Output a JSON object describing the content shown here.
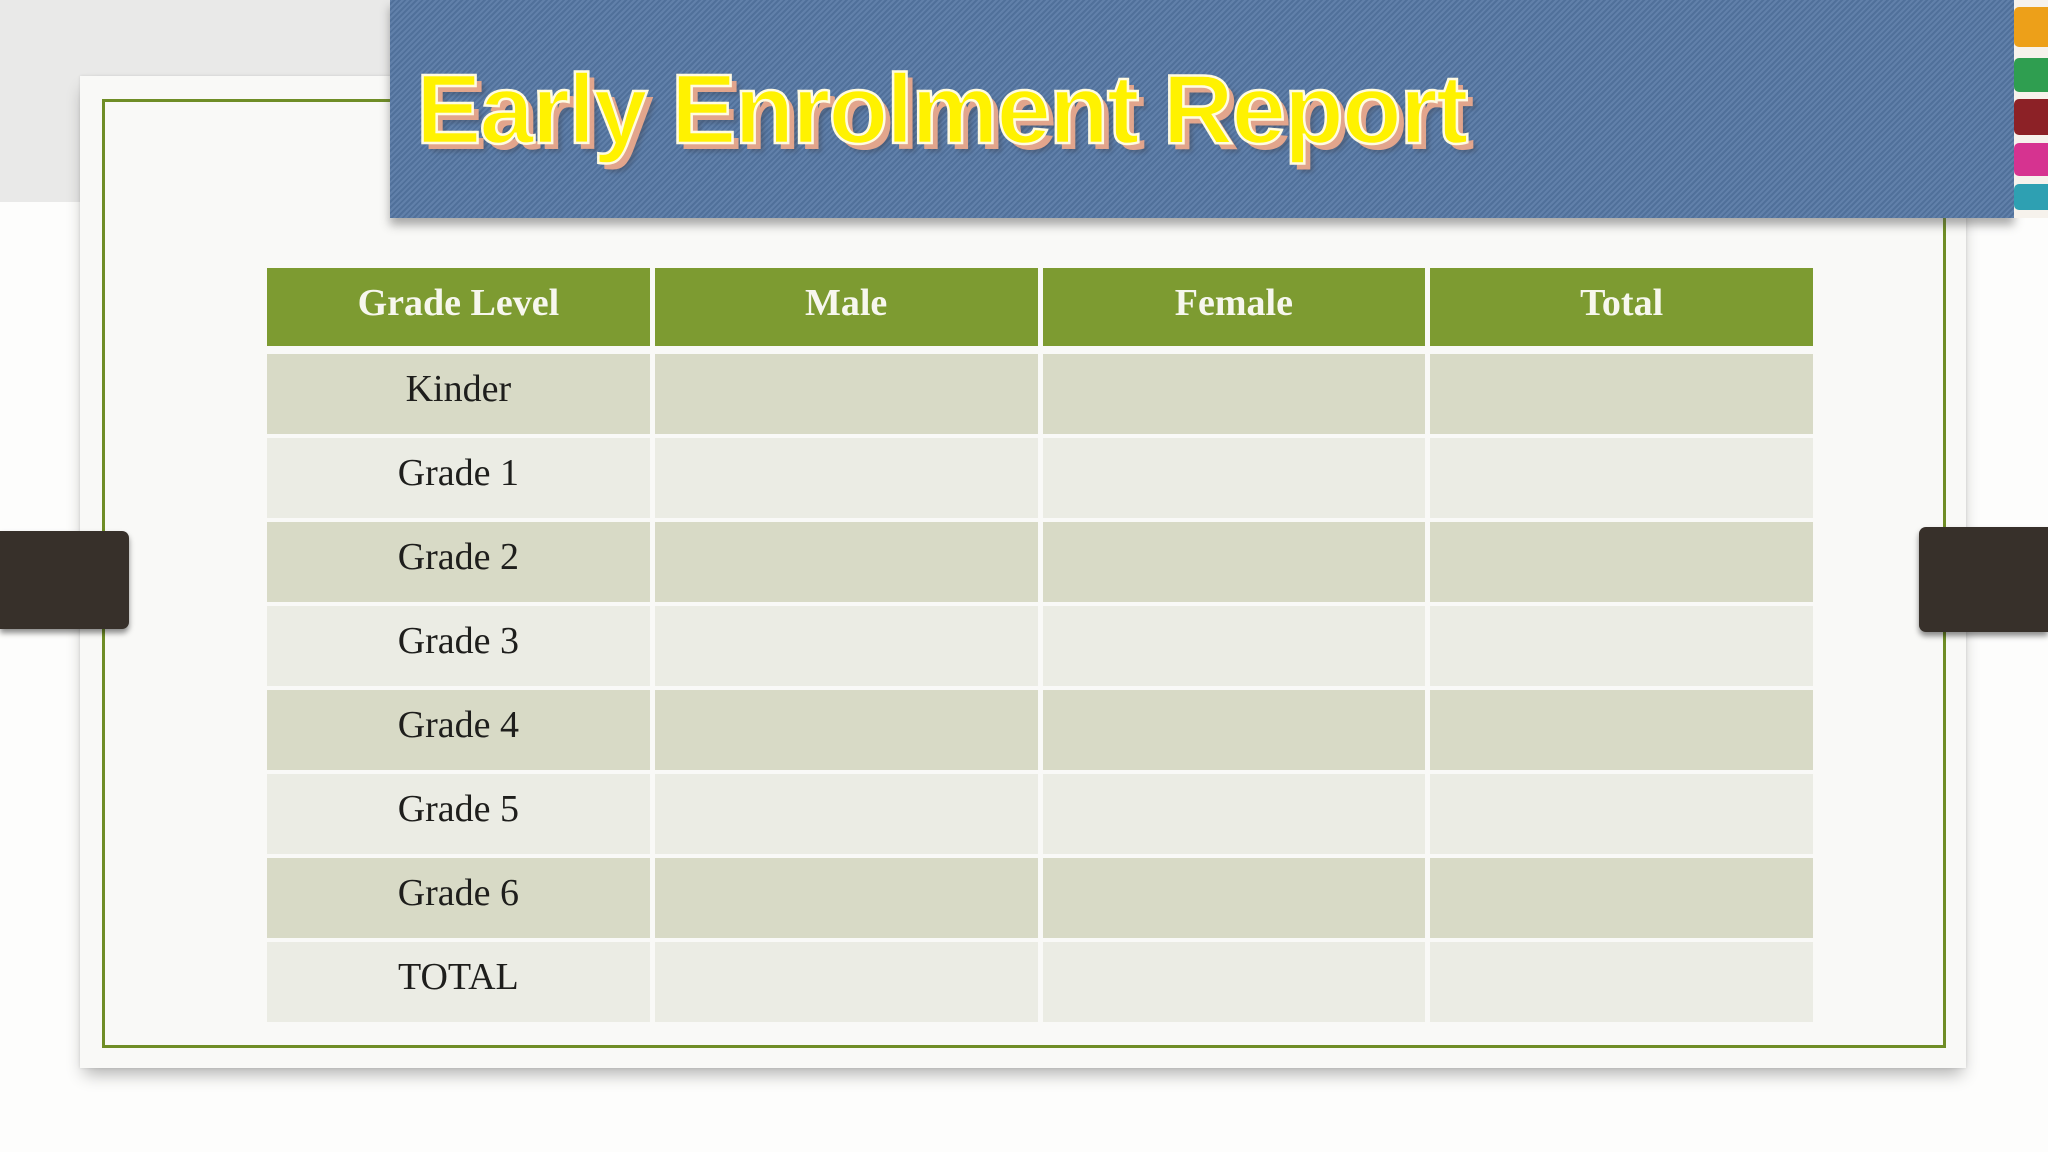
{
  "slide": {
    "title": "Early Enrolment Report",
    "table": {
      "headers": [
        "Grade Level",
        "Male",
        "Female",
        "Total"
      ],
      "rows": [
        {
          "grade_level": "Kinder",
          "male": "",
          "female": "",
          "total": ""
        },
        {
          "grade_level": "Grade 1",
          "male": "",
          "female": "",
          "total": ""
        },
        {
          "grade_level": "Grade 2",
          "male": "",
          "female": "",
          "total": ""
        },
        {
          "grade_level": "Grade 3",
          "male": "",
          "female": "",
          "total": ""
        },
        {
          "grade_level": "Grade 4",
          "male": "",
          "female": "",
          "total": ""
        },
        {
          "grade_level": "Grade 5",
          "male": "",
          "female": "",
          "total": ""
        },
        {
          "grade_level": "Grade 6",
          "male": "",
          "female": "",
          "total": ""
        },
        {
          "grade_level": "TOTAL",
          "male": "",
          "female": "",
          "total": ""
        }
      ]
    },
    "colors": {
      "banner_blue": "#5577a4",
      "title_yellow": "#fff200",
      "title_shadow_salmon": "#e2a58c",
      "header_green": "#7d9b31",
      "row_dark": "#d8dac6",
      "row_light": "#ebece4",
      "border_green": "#6f8d26",
      "side_bar_brown": "#37302a",
      "backdrop_gray": "#e9e9e8",
      "card_white": "#f9f9f7",
      "pencil_strip": [
        "#eda019",
        "#2f9e50",
        "#8c2126",
        "#d63390",
        "#2ea0b2"
      ]
    }
  }
}
